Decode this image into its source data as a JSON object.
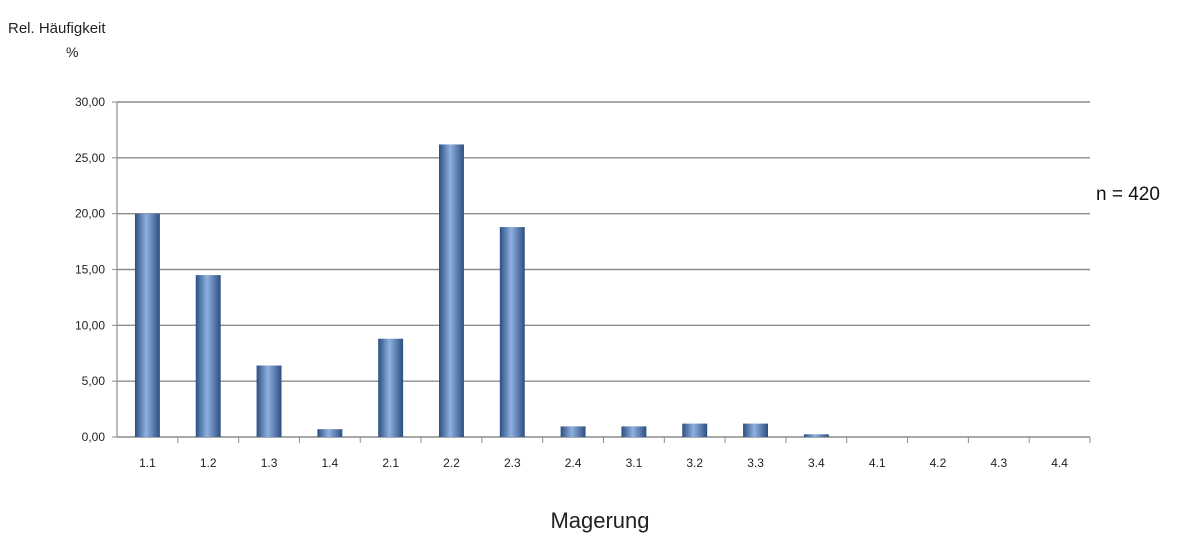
{
  "chart_data": {
    "type": "bar",
    "ylabel": "Rel. Häufigkeit",
    "yunit": "%",
    "xlabel": "Magerung",
    "annotation": "n = 420",
    "categories": [
      "1.1",
      "1.2",
      "1.3",
      "1.4",
      "2.1",
      "2.2",
      "2.3",
      "2.4",
      "3.1",
      "3.2",
      "3.3",
      "3.4",
      "4.1",
      "4.2",
      "4.3",
      "4.4"
    ],
    "values": [
      20.0,
      14.5,
      6.4,
      0.7,
      8.8,
      26.2,
      18.8,
      0.95,
      0.95,
      1.2,
      1.2,
      0.24,
      0,
      0,
      0,
      0
    ],
    "ylim": [
      0,
      30
    ],
    "yticks": [
      "0,00",
      "5,00",
      "10,00",
      "15,00",
      "20,00",
      "25,00",
      "30,00"
    ],
    "grid": true,
    "bar_color": "#4a78b5",
    "bar_color_dark": "#2c4f82",
    "bar_color_light": "#8fb1df",
    "grid_color": "#8c8c8c"
  }
}
